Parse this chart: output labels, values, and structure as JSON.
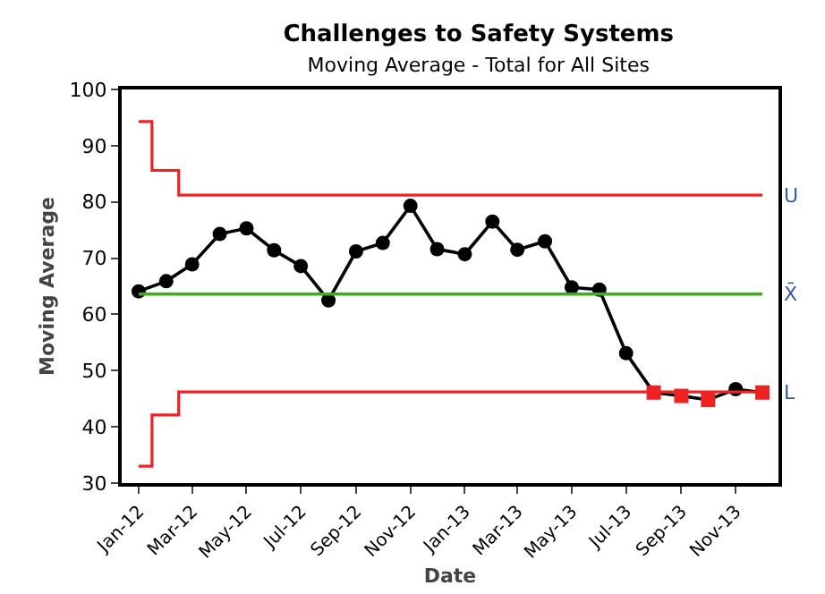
{
  "chart_data": {
    "type": "line",
    "title": "Challenges to Safety Systems",
    "subtitle": "Moving Average - Total for All Sites",
    "xlabel": "Date",
    "ylabel": "Moving Average",
    "x": [
      "2012-01",
      "2012-02",
      "2012-03",
      "2012-04",
      "2012-05",
      "2012-06",
      "2012-07",
      "2012-08",
      "2012-09",
      "2012-10",
      "2012-11",
      "2012-12",
      "2013-01",
      "2013-02",
      "2013-03",
      "2013-04",
      "2013-05",
      "2013-06",
      "2013-07",
      "2013-08",
      "2013-09",
      "2013-10",
      "2013-11",
      "2013-12"
    ],
    "series": [
      {
        "color": "#000000",
        "marker": "circle",
        "values": [
          64.1,
          65.9,
          68.9,
          74.3,
          75.3,
          71.4,
          68.6,
          62.5,
          71.2,
          72.7,
          79.3,
          71.6,
          70.7,
          76.5,
          71.5,
          73.0,
          64.8,
          64.4,
          53.1,
          46.1,
          45.5,
          44.8,
          46.7,
          46.1
        ],
        "colors": [
          "#000000",
          "#000000",
          "#000000",
          "#000000",
          "#000000",
          "#000000",
          "#000000",
          "#000000",
          "#000000",
          "#000000",
          "#000000",
          "#000000",
          "#000000",
          "#000000",
          "#000000",
          "#000000",
          "#000000",
          "#000000",
          "#000000",
          "#ee2222",
          "#ee2222",
          "#ee2222",
          "#000000",
          "#ee2222"
        ]
      },
      {
        "name": "U",
        "type": "step",
        "color": "#ee2222",
        "marker": "none",
        "x": [
          "2012-01-01",
          "2012-01-16",
          "2012-02-15",
          "2013-12-01"
        ],
        "values": [
          94.3,
          85.6,
          81.2,
          81.2
        ]
      },
      {
        "name": "X̄",
        "type": "line",
        "color": "#44aa22",
        "marker": "none",
        "x": [
          "2012-01-01",
          "2013-12-01"
        ],
        "values": [
          63.6,
          63.6
        ]
      },
      {
        "name": "L",
        "type": "step",
        "color": "#ee2222",
        "marker": "none",
        "x": [
          "2012-01-01",
          "2012-01-16",
          "2012-02-15",
          "2013-12-01"
        ],
        "values": [
          33.0,
          42.1,
          46.2,
          46.2
        ]
      }
    ],
    "xlim": [
      "2011-12-13",
      "2013-12-19"
    ],
    "xticks": [
      {
        "value": "2012-01",
        "label": "Jan-12"
      },
      {
        "value": "2012-03",
        "label": "Mar-12"
      },
      {
        "value": "2012-05",
        "label": "May-12"
      },
      {
        "value": "2012-07",
        "label": "Jul-12"
      },
      {
        "value": "2012-09",
        "label": "Sep-12"
      },
      {
        "value": "2012-11",
        "label": "Nov-12"
      },
      {
        "value": "2013-01",
        "label": "Jan-13"
      },
      {
        "value": "2013-03",
        "label": "Mar-13"
      },
      {
        "value": "2013-05",
        "label": "May-13"
      },
      {
        "value": "2013-07",
        "label": "Jul-13"
      },
      {
        "value": "2013-09",
        "label": "Sep-13"
      },
      {
        "value": "2013-11",
        "label": "Nov-13"
      }
    ],
    "ylim": [
      30,
      100
    ],
    "yticks": [
      30,
      40,
      50,
      60,
      70,
      80,
      90,
      100
    ],
    "grid": false,
    "legend": false
  }
}
